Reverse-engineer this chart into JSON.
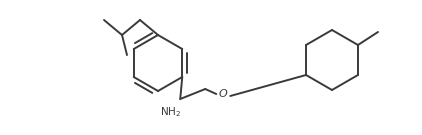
{
  "line_color": "#3a3a3a",
  "line_width": 1.4,
  "bg_color": "#ffffff",
  "figsize": [
    4.22,
    1.35
  ],
  "dpi": 100,
  "nh2_label": "NH$_2$",
  "o_label": "O"
}
